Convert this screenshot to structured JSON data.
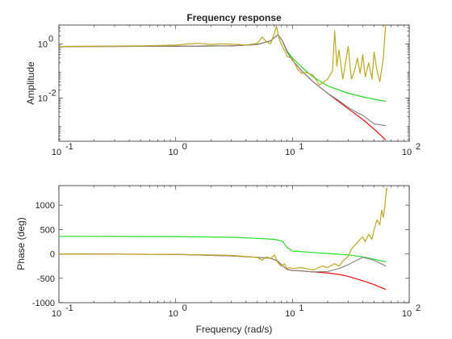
{
  "chart_data": [
    {
      "type": "line",
      "title": "Frequency response",
      "xlabel": "",
      "ylabel": "Amplitude",
      "xscale": "log",
      "yscale": "log",
      "xlim": [
        0.1,
        100
      ],
      "ylim": [
        0.00025,
        5
      ],
      "xticks": [
        0.1,
        1,
        10,
        100
      ],
      "xtick_labels": [
        {
          "base": "10",
          "exp": "-1"
        },
        {
          "base": "10",
          "exp": "0"
        },
        {
          "base": "10",
          "exp": "1"
        },
        {
          "base": "10",
          "exp": "2"
        }
      ],
      "yticks": [
        0.01,
        1
      ],
      "ytick_labels": [
        {
          "base": "10",
          "exp": "-2"
        },
        {
          "base": "10",
          "exp": "0"
        }
      ],
      "grid": false,
      "legend": "none",
      "series": [
        {
          "color": "#22dd22",
          "x": [
            0.1,
            1,
            3,
            5,
            6.5,
            7.5,
            8.2,
            9,
            10,
            12,
            15,
            20,
            30,
            40,
            50,
            63
          ],
          "y": [
            0.8,
            0.82,
            0.85,
            0.95,
            1.3,
            2.2,
            1.3,
            0.55,
            0.3,
            0.14,
            0.06,
            0.028,
            0.015,
            0.011,
            0.009,
            0.0075
          ]
        },
        {
          "color": "#ee1111",
          "x": [
            0.1,
            1,
            3,
            5,
            6.5,
            7.5,
            8.2,
            9,
            10,
            12,
            15,
            20,
            30,
            40,
            50,
            63
          ],
          "y": [
            0.8,
            0.82,
            0.85,
            0.95,
            1.3,
            2.2,
            1.3,
            0.5,
            0.25,
            0.1,
            0.04,
            0.015,
            0.004,
            0.0016,
            0.0007,
            0.00028
          ]
        },
        {
          "color": "#888888",
          "x": [
            0.1,
            1,
            3,
            5,
            6.5,
            7.5,
            8.2,
            9,
            10,
            12,
            15,
            20,
            25,
            30,
            35,
            40,
            50,
            63
          ],
          "y": [
            0.8,
            0.82,
            0.85,
            0.95,
            1.3,
            2.2,
            1.3,
            0.5,
            0.25,
            0.1,
            0.04,
            0.015,
            0.008,
            0.0045,
            0.003,
            0.0023,
            0.0011,
            0.00095
          ]
        },
        {
          "color": "#bbaa22",
          "x": [
            0.1,
            0.5,
            1,
            1.3,
            1.6,
            2,
            2.5,
            3.5,
            4,
            5,
            5.5,
            6,
            6.5,
            7,
            7.3,
            7.7,
            8,
            8.5,
            9,
            10,
            11,
            12,
            13,
            15,
            17,
            20,
            22,
            23,
            24,
            25,
            27,
            30,
            32,
            34,
            36,
            38,
            40,
            42,
            45,
            48,
            50,
            53,
            56,
            60,
            63
          ],
          "y": [
            0.8,
            0.85,
            0.9,
            1.0,
            1.05,
            0.95,
            1.0,
            0.95,
            0.9,
            1.05,
            1.8,
            1.2,
            1.0,
            2.5,
            4.5,
            1.5,
            1.0,
            0.6,
            0.35,
            0.28,
            0.12,
            0.08,
            0.09,
            0.07,
            0.03,
            0.05,
            0.1,
            3.0,
            0.15,
            0.6,
            0.05,
            0.8,
            0.05,
            0.1,
            0.3,
            0.08,
            0.4,
            0.06,
            0.2,
            0.05,
            0.5,
            0.1,
            0.04,
            0.3,
            6.0
          ]
        }
      ]
    },
    {
      "type": "line",
      "title": "",
      "xlabel": "Frequency (rad/s)",
      "ylabel": "Phase (deg)",
      "xscale": "log",
      "yscale": "linear",
      "xlim": [
        0.1,
        100
      ],
      "ylim": [
        -1000,
        1400
      ],
      "xticks": [
        0.1,
        1,
        10,
        100
      ],
      "xtick_labels": [
        {
          "base": "10",
          "exp": "-1"
        },
        {
          "base": "10",
          "exp": "0"
        },
        {
          "base": "10",
          "exp": "1"
        },
        {
          "base": "10",
          "exp": "2"
        }
      ],
      "yticks": [
        -1000,
        -500,
        0,
        500,
        1000
      ],
      "ytick_labels": [
        "-1000",
        "-500",
        "0",
        "500",
        "1000"
      ],
      "grid": false,
      "legend": "none",
      "series": [
        {
          "color": "#22dd22",
          "x": [
            0.1,
            1,
            3,
            5,
            7,
            8.2,
            9,
            10,
            15,
            20,
            30,
            40,
            50,
            63
          ],
          "y": [
            360,
            355,
            340,
            320,
            300,
            260,
            130,
            60,
            30,
            10,
            -20,
            -60,
            -110,
            -160
          ]
        },
        {
          "color": "#ee1111",
          "x": [
            0.1,
            1,
            3,
            5,
            6.5,
            7.5,
            8.2,
            9,
            10,
            12,
            15,
            20,
            25,
            30,
            40,
            50,
            63
          ],
          "y": [
            0,
            -10,
            -40,
            -70,
            -90,
            -150,
            -240,
            -320,
            -340,
            -350,
            -370,
            -390,
            -420,
            -460,
            -550,
            -630,
            -730
          ]
        },
        {
          "color": "#888888",
          "x": [
            0.1,
            1,
            3,
            5,
            6.5,
            7.5,
            8.2,
            9,
            10,
            12,
            15,
            20,
            25,
            30,
            35,
            40,
            50,
            63
          ],
          "y": [
            0,
            -10,
            -40,
            -70,
            -90,
            -150,
            -240,
            -320,
            -340,
            -350,
            -370,
            -360,
            -300,
            -220,
            -140,
            -70,
            -130,
            -250
          ]
        },
        {
          "color": "#bbaa22",
          "x": [
            0.1,
            1,
            2,
            3,
            4,
            5,
            5.5,
            6,
            6.5,
            7,
            7.5,
            8,
            8.5,
            9,
            9.5,
            10,
            12,
            15,
            18,
            20,
            23,
            25,
            27,
            30,
            32,
            35,
            38,
            40,
            42,
            45,
            48,
            50,
            53,
            56,
            58,
            60,
            62,
            63,
            64,
            65
          ],
          "y": [
            0,
            -10,
            -20,
            -30,
            -55,
            -70,
            -130,
            -60,
            -100,
            -20,
            -180,
            -250,
            -200,
            -300,
            -280,
            -300,
            -280,
            -330,
            -250,
            -280,
            -200,
            -250,
            -150,
            -50,
            100,
            200,
            300,
            350,
            250,
            400,
            300,
            500,
            700,
            600,
            900,
            750,
            1000,
            1200,
            1350,
            1300
          ]
        }
      ]
    }
  ]
}
